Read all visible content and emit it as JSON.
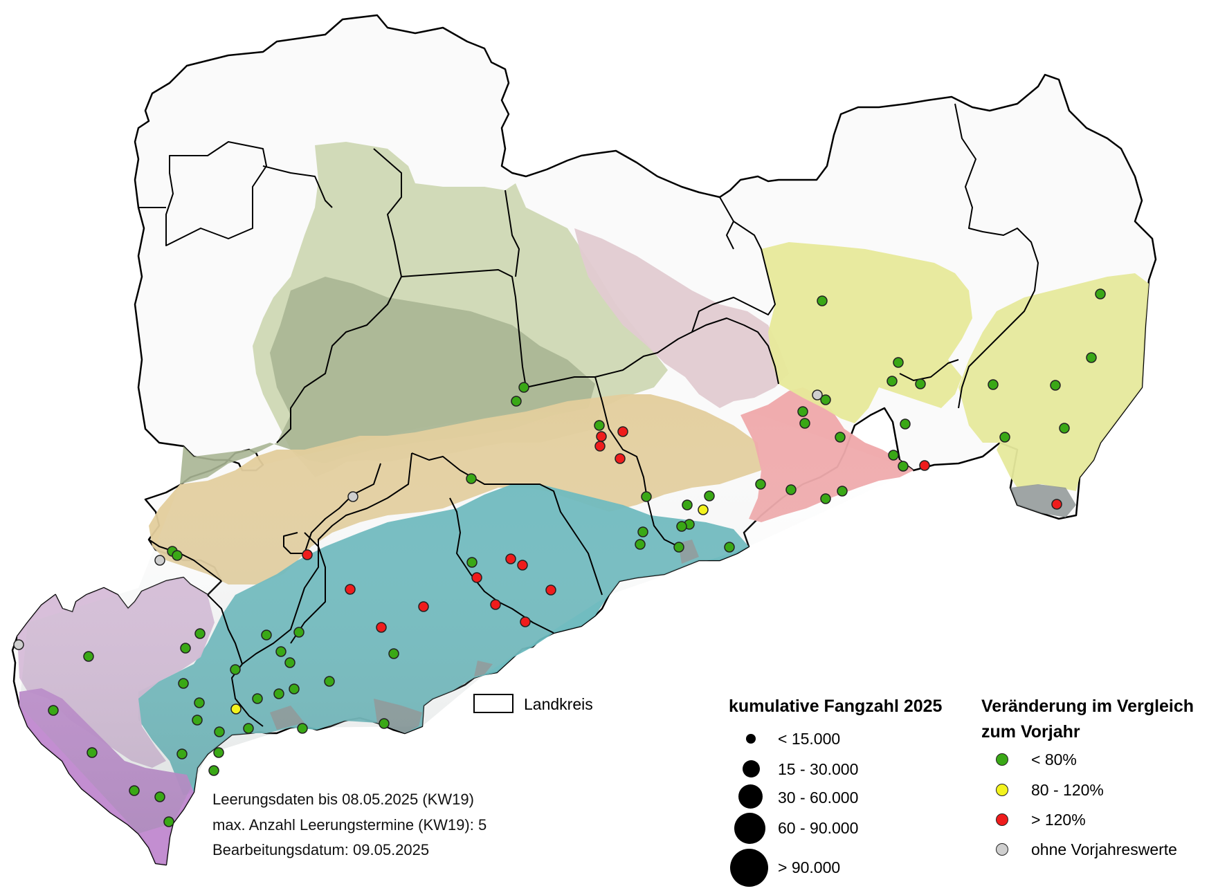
{
  "colors": {
    "green": "#3aa816",
    "yellow": "#f3f31e",
    "red": "#ef1c1c",
    "grey": "#cfcfcf",
    "region_green": "#cfd8b4",
    "region_darkgreen": "#a7b391",
    "region_tan": "#e4cfa0",
    "region_teal": "#6bbbc0",
    "region_pink": "#ead0d6",
    "region_red": "#f0a8a8",
    "region_yellow": "#e8ea9a",
    "region_violet": "#c79bd1"
  },
  "map": {
    "landkreis_label": "Landkreis",
    "notes": [
      "Leerungsdaten bis 08.05.2025 (KW19)",
      "max. Anzahl Leerungstermine (KW19): 5",
      "Bearbeitungsdatum: 09.05.2025"
    ]
  },
  "legend_size": {
    "title": "kumulative Fangzahl 2025",
    "items": [
      "< 15.000",
      "15 - 30.000",
      "30 - 60.000",
      "60 - 90.000",
      "> 90.000"
    ]
  },
  "legend_change": {
    "title_line1": "Veränderung im Vergleich",
    "title_line2": "zum Vorjahr",
    "items": [
      {
        "label": "< 80%",
        "color": "green"
      },
      {
        "label": "80 - 120%",
        "color": "yellow"
      },
      {
        "label": "> 120%",
        "color": "red"
      },
      {
        "label": "ohne Vorjahreswerte",
        "color": "grey"
      }
    ]
  },
  "traps": [
    {
      "c": "green",
      "p": [
        1188,
        435
      ]
    },
    {
      "c": "green",
      "p": [
        1590,
        425
      ]
    },
    {
      "c": "green",
      "p": [
        1577,
        517
      ]
    },
    {
      "c": "green",
      "p": [
        1298,
        524
      ]
    },
    {
      "c": "green",
      "p": [
        1289,
        551
      ]
    },
    {
      "c": "green",
      "p": [
        1330,
        555
      ]
    },
    {
      "c": "green",
      "p": [
        1435,
        556
      ]
    },
    {
      "c": "green",
      "p": [
        1525,
        557
      ]
    },
    {
      "c": "grey",
      "p": [
        1181,
        571
      ]
    },
    {
      "c": "green",
      "p": [
        1193,
        578
      ]
    },
    {
      "c": "green",
      "p": [
        1160,
        595
      ]
    },
    {
      "c": "green",
      "p": [
        1163,
        612
      ]
    },
    {
      "c": "green",
      "p": [
        1308,
        613
      ]
    },
    {
      "c": "green",
      "p": [
        1538,
        619
      ]
    },
    {
      "c": "green",
      "p": [
        1452,
        632
      ]
    },
    {
      "c": "green",
      "p": [
        1214,
        632
      ]
    },
    {
      "c": "green",
      "p": [
        1291,
        658
      ]
    },
    {
      "c": "green",
      "p": [
        1305,
        674
      ]
    },
    {
      "c": "red",
      "p": [
        1336,
        673
      ]
    },
    {
      "c": "green",
      "p": [
        1099,
        700
      ]
    },
    {
      "c": "green",
      "p": [
        1143,
        708
      ]
    },
    {
      "c": "green",
      "p": [
        1217,
        710
      ]
    },
    {
      "c": "green",
      "p": [
        1193,
        721
      ]
    },
    {
      "c": "red",
      "p": [
        1527,
        729
      ]
    },
    {
      "c": "green",
      "p": [
        757,
        560
      ]
    },
    {
      "c": "green",
      "p": [
        746,
        580
      ]
    },
    {
      "c": "green",
      "p": [
        866,
        615
      ]
    },
    {
      "c": "red",
      "p": [
        900,
        624
      ]
    },
    {
      "c": "red",
      "p": [
        869,
        631
      ]
    },
    {
      "c": "red",
      "p": [
        867,
        645
      ]
    },
    {
      "c": "red",
      "p": [
        896,
        663
      ]
    },
    {
      "c": "green",
      "p": [
        681,
        692
      ]
    },
    {
      "c": "grey",
      "p": [
        510,
        718
      ]
    },
    {
      "c": "green",
      "p": [
        934,
        718
      ]
    },
    {
      "c": "green",
      "p": [
        1025,
        717
      ]
    },
    {
      "c": "green",
      "p": [
        993,
        730
      ]
    },
    {
      "c": "yellow",
      "p": [
        1016,
        737
      ]
    },
    {
      "c": "green",
      "p": [
        996,
        758
      ]
    },
    {
      "c": "green",
      "p": [
        985,
        761
      ]
    },
    {
      "c": "green",
      "p": [
        929,
        769
      ]
    },
    {
      "c": "green",
      "p": [
        925,
        787
      ]
    },
    {
      "c": "green",
      "p": [
        981,
        791
      ]
    },
    {
      "c": "green",
      "p": [
        1054,
        791
      ]
    },
    {
      "c": "green",
      "p": [
        249,
        797
      ]
    },
    {
      "c": "green",
      "p": [
        256,
        803
      ]
    },
    {
      "c": "grey",
      "p": [
        231,
        810
      ]
    },
    {
      "c": "red",
      "p": [
        444,
        802
      ]
    },
    {
      "c": "green",
      "p": [
        682,
        813
      ]
    },
    {
      "c": "red",
      "p": [
        738,
        808
      ]
    },
    {
      "c": "red",
      "p": [
        755,
        817
      ]
    },
    {
      "c": "red",
      "p": [
        689,
        835
      ]
    },
    {
      "c": "red",
      "p": [
        796,
        853
      ]
    },
    {
      "c": "red",
      "p": [
        506,
        852
      ]
    },
    {
      "c": "red",
      "p": [
        612,
        877
      ]
    },
    {
      "c": "red",
      "p": [
        716,
        874
      ]
    },
    {
      "c": "red",
      "p": [
        759,
        899
      ]
    },
    {
      "c": "red",
      "p": [
        551,
        907
      ]
    },
    {
      "c": "green",
      "p": [
        289,
        916
      ]
    },
    {
      "c": "green",
      "p": [
        385,
        918
      ]
    },
    {
      "c": "green",
      "p": [
        432,
        914
      ]
    },
    {
      "c": "grey",
      "p": [
        27,
        932
      ]
    },
    {
      "c": "green",
      "p": [
        268,
        937
      ]
    },
    {
      "c": "green",
      "p": [
        128,
        949
      ]
    },
    {
      "c": "green",
      "p": [
        406,
        942
      ]
    },
    {
      "c": "green",
      "p": [
        569,
        945
      ]
    },
    {
      "c": "green",
      "p": [
        419,
        958
      ]
    },
    {
      "c": "green",
      "p": [
        340,
        968
      ]
    },
    {
      "c": "green",
      "p": [
        265,
        988
      ]
    },
    {
      "c": "green",
      "p": [
        476,
        985
      ]
    },
    {
      "c": "green",
      "p": [
        425,
        996
      ]
    },
    {
      "c": "green",
      "p": [
        403,
        1003
      ]
    },
    {
      "c": "green",
      "p": [
        372,
        1010
      ]
    },
    {
      "c": "green",
      "p": [
        288,
        1016
      ]
    },
    {
      "c": "green",
      "p": [
        77,
        1027
      ]
    },
    {
      "c": "yellow",
      "p": [
        341,
        1025
      ]
    },
    {
      "c": "green",
      "p": [
        285,
        1041
      ]
    },
    {
      "c": "green",
      "p": [
        359,
        1053
      ]
    },
    {
      "c": "green",
      "p": [
        437,
        1053
      ]
    },
    {
      "c": "green",
      "p": [
        555,
        1046
      ]
    },
    {
      "c": "green",
      "p": [
        317,
        1058
      ]
    },
    {
      "c": "green",
      "p": [
        133,
        1088
      ]
    },
    {
      "c": "green",
      "p": [
        263,
        1090
      ]
    },
    {
      "c": "green",
      "p": [
        316,
        1088
      ]
    },
    {
      "c": "green",
      "p": [
        309,
        1114
      ]
    },
    {
      "c": "green",
      "p": [
        194,
        1143
      ]
    },
    {
      "c": "green",
      "p": [
        231,
        1152
      ]
    },
    {
      "c": "green",
      "p": [
        244,
        1188
      ]
    }
  ]
}
